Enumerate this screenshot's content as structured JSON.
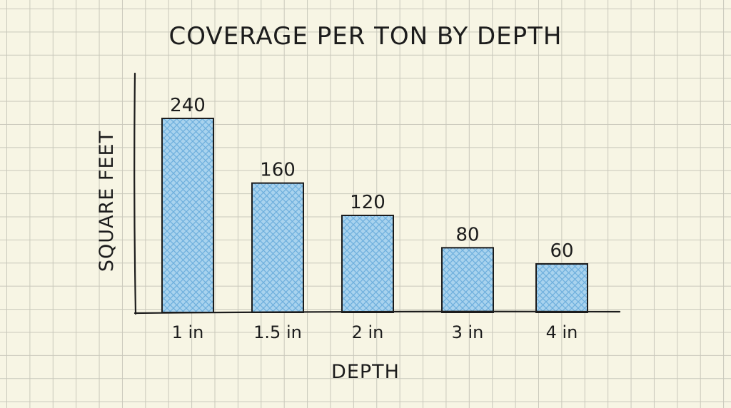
{
  "chart_data": {
    "type": "bar",
    "title": "COVERAGE PER TON BY DEPTH",
    "xlabel": "DEPTH",
    "ylabel": "SQUARE FEET",
    "categories": [
      "1 in",
      "1.5 in",
      "2 in",
      "3 in",
      "4 in"
    ],
    "values": [
      240,
      160,
      120,
      80,
      60
    ],
    "data_labels": [
      "240",
      "160",
      "120",
      "80",
      "60"
    ],
    "ylim": [
      0,
      280
    ],
    "grid": false,
    "legend": "none",
    "colors": {
      "bar_fill": "#a9d3ee",
      "bar_hatch": "#6fb0dd",
      "bar_stroke": "#1c1c1c",
      "axis": "#1c1c1c"
    }
  }
}
